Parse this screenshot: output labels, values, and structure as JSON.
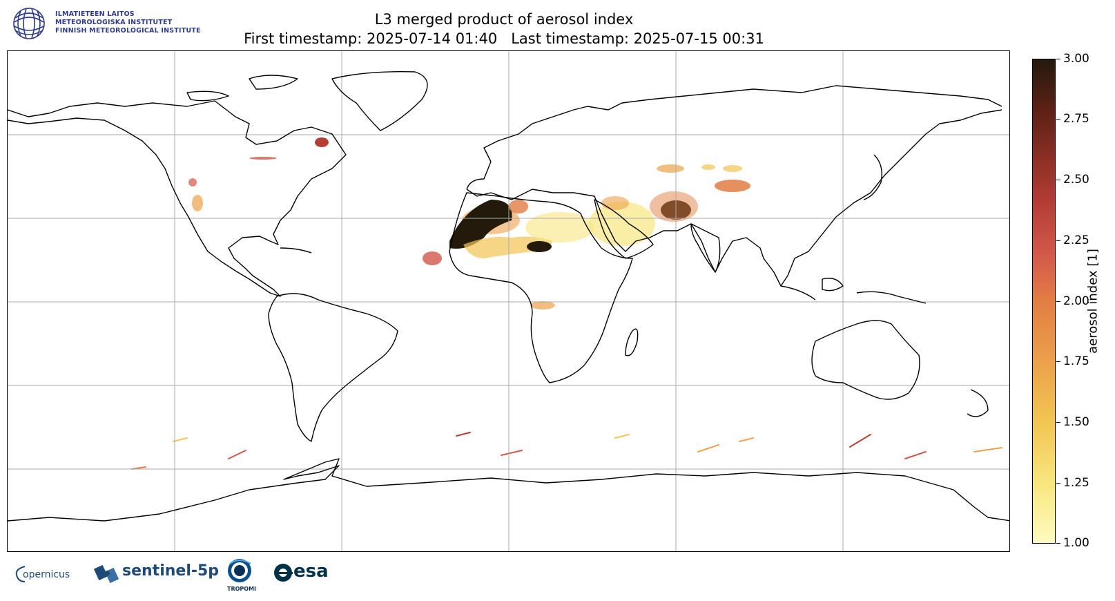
{
  "header": {
    "institute_lines": [
      "ILMATIETEEN LAITOS",
      "METEOROLOGISKA INSTITUTET",
      "FINNISH METEOROLOGICAL INSTITUTE"
    ],
    "title_line1": "L3 merged product of aerosol index",
    "title_line2": "First timestamp: 2025-07-14 01:40   Last timestamp: 2025-07-15 00:31"
  },
  "map": {
    "projection": "equirectangular",
    "gridlines": true,
    "grid_color": "#aaaaaa",
    "coastline_color": "#000000"
  },
  "colorbar": {
    "label": "aerosol index [1]",
    "ticks": [
      "3.00",
      "2.75",
      "2.50",
      "2.25",
      "2.00",
      "1.75",
      "1.50",
      "1.25",
      "1.00"
    ],
    "range": [
      1.0,
      3.0
    ],
    "colors": [
      "#fffbc2",
      "#f2c552",
      "#e27d44",
      "#b43e36",
      "#5a2015",
      "#231a0c"
    ]
  },
  "footer_logos": {
    "copernicus": "opernicus",
    "sentinel": "sentinel-5p",
    "tropomi": "TROPOMI",
    "esa": "esa"
  },
  "colors": {
    "fmi_blue": "#2f3b8c",
    "sentinel_blue": "#1e4a7a",
    "esa_blue": "#003247"
  }
}
